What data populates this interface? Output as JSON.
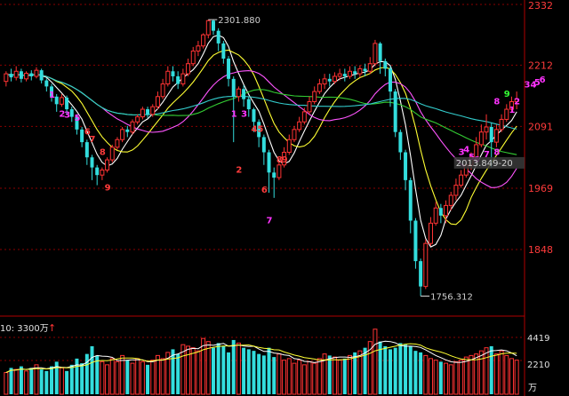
{
  "chart_data": {
    "type": "candlestick",
    "y_ticks": [
      "2332",
      "2212",
      "2091",
      "1969",
      "1848"
    ],
    "ylim": [
      1727,
      2332
    ],
    "high_label": "2301.880",
    "low_label": "1756.312",
    "current_label": "2013.849-20",
    "volume": {
      "header": "10: 3300万",
      "header_arrow": "↑",
      "ticks": [
        "4419",
        "2210"
      ],
      "unit": "万",
      "ylim": [
        0,
        4700
      ]
    },
    "candles": [
      [
        2180,
        2195,
        2170,
        2200
      ],
      [
        2195,
        2188,
        2180,
        2205
      ],
      [
        2188,
        2200,
        2182,
        2210
      ],
      [
        2200,
        2185,
        2178,
        2205
      ],
      [
        2185,
        2196,
        2180,
        2200
      ],
      [
        2196,
        2190,
        2182,
        2202
      ],
      [
        2190,
        2202,
        2186,
        2208
      ],
      [
        2202,
        2182,
        2176,
        2205
      ],
      [
        2182,
        2170,
        2160,
        2186
      ],
      [
        2170,
        2150,
        2140,
        2175
      ],
      [
        2150,
        2135,
        2120,
        2155
      ],
      [
        2135,
        2148,
        2130,
        2155
      ],
      [
        2148,
        2125,
        2115,
        2152
      ],
      [
        2125,
        2110,
        2100,
        2130
      ],
      [
        2110,
        2085,
        2075,
        2115
      ],
      [
        2085,
        2060,
        2050,
        2090
      ],
      [
        2060,
        2030,
        2015,
        2065
      ],
      [
        2030,
        2010,
        1985,
        2035
      ],
      [
        2010,
        1995,
        1975,
        2015
      ],
      [
        1995,
        2005,
        1985,
        2010
      ],
      [
        2005,
        2025,
        2000,
        2030
      ],
      [
        2025,
        2050,
        2020,
        2055
      ],
      [
        2050,
        2065,
        2045,
        2070
      ],
      [
        2065,
        2085,
        2060,
        2090
      ],
      [
        2085,
        2080,
        2070,
        2092
      ],
      [
        2080,
        2100,
        2075,
        2105
      ],
      [
        2100,
        2110,
        2095,
        2115
      ],
      [
        2110,
        2125,
        2105,
        2130
      ],
      [
        2125,
        2115,
        2108,
        2130
      ],
      [
        2115,
        2130,
        2110,
        2135
      ],
      [
        2130,
        2150,
        2125,
        2160
      ],
      [
        2150,
        2175,
        2145,
        2185
      ],
      [
        2175,
        2200,
        2170,
        2210
      ],
      [
        2200,
        2190,
        2180,
        2210
      ],
      [
        2190,
        2175,
        2165,
        2200
      ],
      [
        2175,
        2195,
        2170,
        2205
      ],
      [
        2195,
        2215,
        2190,
        2225
      ],
      [
        2215,
        2240,
        2210,
        2248
      ],
      [
        2240,
        2250,
        2230,
        2260
      ],
      [
        2250,
        2272,
        2245,
        2275
      ],
      [
        2272,
        2300,
        2265,
        2302
      ],
      [
        2300,
        2280,
        2272,
        2302
      ],
      [
        2280,
        2255,
        2240,
        2285
      ],
      [
        2255,
        2225,
        2215,
        2260
      ],
      [
        2225,
        2185,
        2170,
        2230
      ],
      [
        2185,
        2150,
        2060,
        2190
      ],
      [
        2150,
        2165,
        2140,
        2170
      ],
      [
        2165,
        2145,
        2130,
        2172
      ],
      [
        2145,
        2125,
        2110,
        2150
      ],
      [
        2125,
        2100,
        2080,
        2128
      ],
      [
        2100,
        2070,
        2050,
        2105
      ],
      [
        2070,
        2040,
        2015,
        2075
      ],
      [
        2040,
        2000,
        1960,
        2045
      ],
      [
        2000,
        1990,
        1950,
        2010
      ],
      [
        1990,
        2015,
        1985,
        2022
      ],
      [
        2015,
        2040,
        2010,
        2050
      ],
      [
        2040,
        2065,
        2035,
        2075
      ],
      [
        2065,
        2085,
        2060,
        2092
      ],
      [
        2085,
        2100,
        2080,
        2110
      ],
      [
        2100,
        2120,
        2095,
        2128
      ],
      [
        2120,
        2140,
        2115,
        2150
      ],
      [
        2140,
        2160,
        2135,
        2170
      ],
      [
        2160,
        2175,
        2155,
        2185
      ],
      [
        2175,
        2185,
        2165,
        2195
      ],
      [
        2185,
        2180,
        2170,
        2195
      ],
      [
        2180,
        2190,
        2175,
        2198
      ],
      [
        2190,
        2195,
        2182,
        2205
      ],
      [
        2195,
        2190,
        2180,
        2205
      ],
      [
        2190,
        2200,
        2185,
        2210
      ],
      [
        2200,
        2195,
        2185,
        2210
      ],
      [
        2195,
        2205,
        2188,
        2212
      ],
      [
        2205,
        2200,
        2190,
        2215
      ],
      [
        2200,
        2215,
        2195,
        2228
      ],
      [
        2215,
        2255,
        2210,
        2262
      ],
      [
        2255,
        2220,
        2195,
        2258
      ],
      [
        2220,
        2205,
        2190,
        2225
      ],
      [
        2205,
        2160,
        2130,
        2210
      ],
      [
        2160,
        2080,
        2070,
        2165
      ],
      [
        2080,
        2040,
        2025,
        2085
      ],
      [
        2040,
        1985,
        1965,
        2045
      ],
      [
        1985,
        1905,
        1880,
        1990
      ],
      [
        1905,
        1825,
        1810,
        1910
      ],
      [
        1825,
        1775,
        1756,
        1830
      ],
      [
        1775,
        1860,
        1770,
        1868
      ],
      [
        1860,
        1900,
        1855,
        1912
      ],
      [
        1900,
        1930,
        1895,
        1942
      ],
      [
        1930,
        1915,
        1900,
        1938
      ],
      [
        1915,
        1935,
        1900,
        1945
      ],
      [
        1935,
        1955,
        1925,
        1962
      ],
      [
        1955,
        1975,
        1945,
        1988
      ],
      [
        1975,
        1995,
        1970,
        2005
      ],
      [
        1995,
        2015,
        1990,
        2025
      ],
      [
        2015,
        2030,
        2005,
        2040
      ],
      [
        2030,
        2055,
        2025,
        2070
      ],
      [
        2055,
        2080,
        2050,
        2095
      ],
      [
        2080,
        2090,
        2065,
        2115
      ],
      [
        2090,
        2060,
        2010,
        2098
      ],
      [
        2060,
        2085,
        2050,
        2095
      ],
      [
        2085,
        2105,
        2080,
        2115
      ],
      [
        2105,
        2125,
        2100,
        2135
      ],
      [
        2125,
        2140,
        2120,
        2150
      ],
      [
        2140,
        2145,
        2125,
        2160
      ]
    ],
    "volumes": [
      1400,
      1700,
      1600,
      1800,
      1500,
      1700,
      1900,
      1600,
      1500,
      1800,
      2100,
      1700,
      1500,
      1900,
      2300,
      2000,
      2600,
      3100,
      2500,
      2100,
      1900,
      2300,
      2100,
      2500,
      2200,
      2000,
      2300,
      2100,
      1900,
      2200,
      2500,
      2300,
      2700,
      2900,
      2600,
      3200,
      3100,
      3000,
      2800,
      3600,
      3400,
      3000,
      3300,
      3100,
      2700,
      3500,
      3300,
      3000,
      2900,
      2800,
      2600,
      2500,
      3000,
      2400,
      2600,
      2200,
      2300,
      2000,
      2200,
      1900,
      2100,
      2000,
      2300,
      2600,
      2500,
      2400,
      2200,
      2300,
      2500,
      2700,
      2800,
      3000,
      3400,
      4200,
      3400,
      3100,
      2900,
      3000,
      3300,
      3200,
      3100,
      2800,
      2700,
      2500,
      2300,
      2200,
      2100,
      2000,
      1900,
      2100,
      2200,
      2400,
      2500,
      2600,
      2800,
      3000,
      3100,
      2600,
      2800,
      2500,
      2300,
      2200
    ],
    "moving_averages": [
      {
        "color": "#ffffff",
        "period": 5
      },
      {
        "color": "#ffff33",
        "period": 10
      },
      {
        "color": "#ff55ff",
        "period": 20
      },
      {
        "color": "#33cc33",
        "period": 30
      },
      {
        "color": "#33cccc",
        "period": 60
      }
    ],
    "annotations": [
      {
        "text": "1",
        "i": 9,
        "price": 2148,
        "color": "mag"
      },
      {
        "text": "2",
        "i": 11,
        "price": 2110,
        "color": "mag"
      },
      {
        "text": "3",
        "i": 12,
        "price": 2108,
        "color": "mag"
      },
      {
        "text": "5",
        "i": 14,
        "price": 2102,
        "color": "mag"
      },
      {
        "text": "6",
        "i": 16,
        "price": 2075,
        "color": "red"
      },
      {
        "text": "7",
        "i": 17,
        "price": 2060,
        "color": "red"
      },
      {
        "text": "8",
        "i": 19,
        "price": 2035,
        "color": "red"
      },
      {
        "text": "9",
        "i": 20,
        "price": 1965,
        "color": "red"
      },
      {
        "text": "1",
        "i": 45,
        "price": 2110,
        "color": "mag"
      },
      {
        "text": "3",
        "i": 47,
        "price": 2110,
        "color": "mag"
      },
      {
        "text": "45",
        "i": 49,
        "price": 2080,
        "color": "red"
      },
      {
        "text": "2",
        "i": 46,
        "price": 2000,
        "color": "red"
      },
      {
        "text": "8",
        "i": 54,
        "price": 2020,
        "color": "red"
      },
      {
        "text": "9",
        "i": 55,
        "price": 2020,
        "color": "red"
      },
      {
        "text": "6",
        "i": 51,
        "price": 1960,
        "color": "red"
      },
      {
        "text": "7",
        "i": 52,
        "price": 1900,
        "color": "mag"
      },
      {
        "text": "3",
        "i": 90,
        "price": 2035,
        "color": "mag"
      },
      {
        "text": "4",
        "i": 91,
        "price": 2040,
        "color": "mag"
      },
      {
        "text": "5",
        "i": 92,
        "price": 2025,
        "color": "mag"
      },
      {
        "text": "6",
        "i": 93,
        "price": 2020,
        "color": "mag"
      },
      {
        "text": "7",
        "i": 95,
        "price": 2030,
        "color": "mag"
      },
      {
        "text": "8",
        "i": 97,
        "price": 2035,
        "color": "mag"
      },
      {
        "text": "9",
        "i": 99,
        "price": 2150,
        "color": "grn"
      },
      {
        "text": "8",
        "i": 97,
        "price": 2135,
        "color": "mag"
      },
      {
        "text": "1",
        "i": 100,
        "price": 2118,
        "color": "mag"
      },
      {
        "text": "2",
        "i": 101,
        "price": 2135,
        "color": "mag"
      },
      {
        "text": "34",
        "i": 103,
        "price": 2168,
        "color": "mag"
      },
      {
        "text": "5",
        "i": 105,
        "price": 2172,
        "color": "mag"
      },
      {
        "text": "6",
        "i": 106,
        "price": 2178,
        "color": "mag"
      }
    ]
  }
}
